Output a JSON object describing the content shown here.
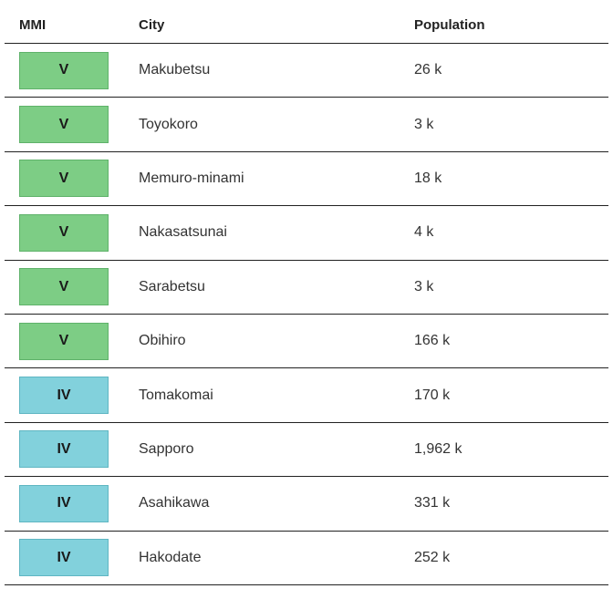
{
  "table": {
    "headers": {
      "mmi": "MMI",
      "city": "City",
      "population": "Population"
    },
    "intensity_colors": {
      "V": {
        "fill": "#7dcd85",
        "border": "#5fb26a"
      },
      "IV": {
        "fill": "#82d1dc",
        "border": "#5fb6c2"
      }
    },
    "rows": [
      {
        "mmi": "V",
        "city": "Makubetsu",
        "population": "26 k"
      },
      {
        "mmi": "V",
        "city": "Toyokoro",
        "population": "3 k"
      },
      {
        "mmi": "V",
        "city": "Memuro-minami",
        "population": "18 k"
      },
      {
        "mmi": "V",
        "city": "Nakasatsunai",
        "population": "4 k"
      },
      {
        "mmi": "V",
        "city": "Sarabetsu",
        "population": "3 k"
      },
      {
        "mmi": "V",
        "city": "Obihiro",
        "population": "166 k"
      },
      {
        "mmi": "IV",
        "city": "Tomakomai",
        "population": "170 k"
      },
      {
        "mmi": "IV",
        "city": "Sapporo",
        "population": "1,962 k"
      },
      {
        "mmi": "IV",
        "city": "Asahikawa",
        "population": "331 k"
      },
      {
        "mmi": "IV",
        "city": "Hakodate",
        "population": "252 k"
      }
    ]
  }
}
